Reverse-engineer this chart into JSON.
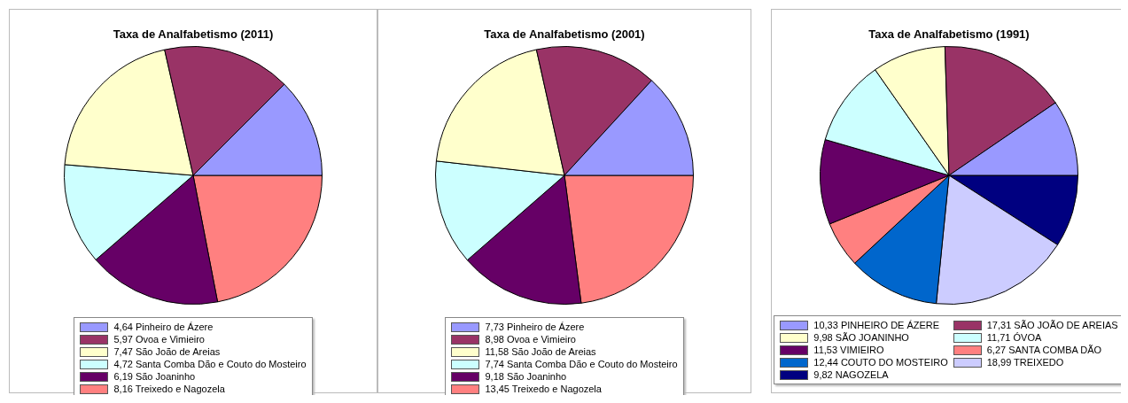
{
  "chart_data": [
    {
      "type": "pie",
      "title": "Taxa de Analfabetismo (2011)",
      "legend": "bottom",
      "categories": [
        "Pinheiro de Ázere",
        "Ovoa e Vimieiro",
        "São João de Areias",
        "Santa Comba Dão e Couto do Mosteiro",
        "São Joaninho",
        "Treixedo e Nagozela"
      ],
      "values": [
        4.64,
        5.97,
        7.47,
        4.72,
        6.19,
        8.16
      ],
      "value_labels": [
        "4,64",
        "5,97",
        "7,47",
        "4,72",
        "6,19",
        "8,16"
      ],
      "colors": [
        "#9999ff",
        "#993366",
        "#ffffcc",
        "#ccffff",
        "#660066",
        "#ff8080"
      ]
    },
    {
      "type": "pie",
      "title": "Taxa de Analfabetismo (2001)",
      "legend": "bottom",
      "categories": [
        "Pinheiro de Ázere",
        "Ovoa e Vimieiro",
        "São João de Areias",
        "Santa Comba Dão e Couto do Mosteiro",
        "São Joaninho",
        "Treixedo e Nagozela"
      ],
      "values": [
        7.73,
        8.98,
        11.58,
        7.74,
        9.18,
        13.45
      ],
      "value_labels": [
        "7,73",
        "8,98",
        "11,58",
        "7,74",
        "9,18",
        "13,45"
      ],
      "colors": [
        "#9999ff",
        "#993366",
        "#ffffcc",
        "#ccffff",
        "#660066",
        "#ff8080"
      ]
    },
    {
      "type": "pie",
      "title": "Taxa de Analfabetismo (1991)",
      "legend": "bottom",
      "categories": [
        "PINHEIRO DE ÁZERE",
        "SÃO JOÃO DE AREIAS",
        "SÃO JOANINHO",
        "ÓVOA",
        "VIMIEIRO",
        "SANTA COMBA DÃO",
        "COUTO DO MOSTEIRO",
        "TREIXEDO",
        "NAGOZELA"
      ],
      "values": [
        10.33,
        17.31,
        9.98,
        11.71,
        11.53,
        6.27,
        12.44,
        18.99,
        9.82
      ],
      "value_labels": [
        "10,33",
        "17,31",
        "9,98",
        "11,71",
        "11,53",
        "6,27",
        "12,44",
        "18,99",
        "9,82"
      ],
      "colors": [
        "#9999ff",
        "#993366",
        "#ffffcc",
        "#ccffff",
        "#660066",
        "#ff8080",
        "#0066cc",
        "#ccccff",
        "#000080"
      ]
    }
  ]
}
